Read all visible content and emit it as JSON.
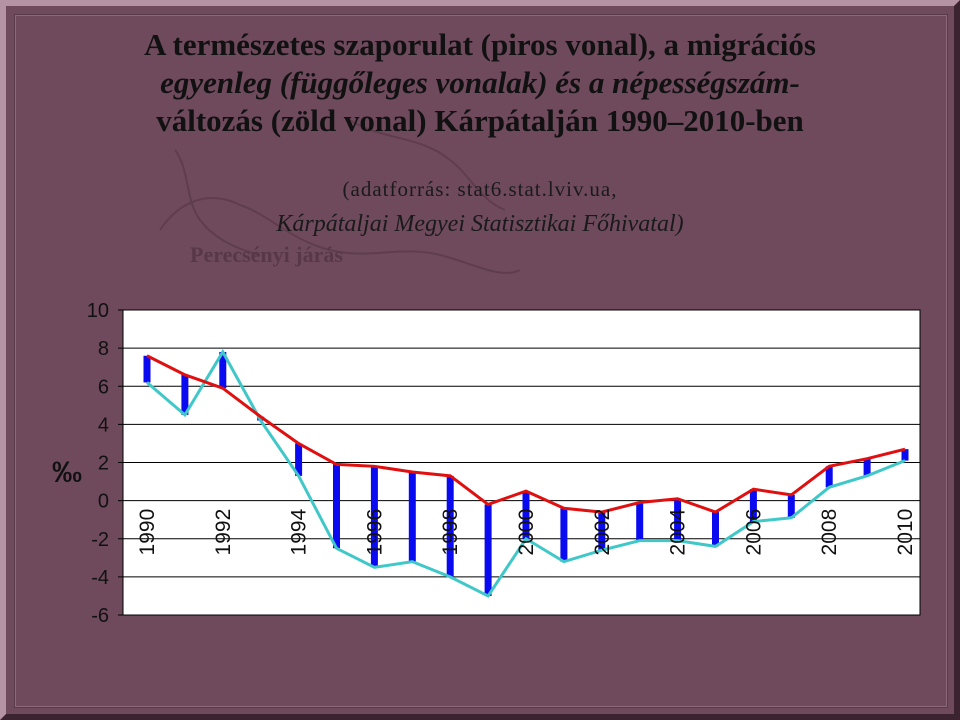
{
  "title": {
    "line1": "A természetes szaporulat (piros vonal), a migrációs",
    "line2": "egyenleg (függőleges vonalak) és a népességszám-",
    "line3": "változás (zöld vonal) Kárpátalján 1990–2010-ben"
  },
  "source": {
    "line1": "(adatforrás: stat6.stat.lviv.ua,",
    "line2": "Kárpátaljai Megyei Statisztikai Főhivatal)"
  },
  "background_label": "Perecsényi járás",
  "colors": {
    "background": "#6e4a5c",
    "plot_background": "#ffffff",
    "natural_increase": "#e01010",
    "population_change": "#40c8c8",
    "migration_bar": "#0a0af0"
  },
  "chart_data": {
    "type": "line",
    "ylabel": "‰",
    "ylim": [
      -6,
      10
    ],
    "yticks": [
      "10",
      "8",
      "6",
      "4",
      "2",
      "0",
      "-2",
      "-4",
      "-6"
    ],
    "x": [
      1990,
      1991,
      1992,
      1993,
      1994,
      1995,
      1996,
      1997,
      1998,
      1999,
      2000,
      2001,
      2002,
      2003,
      2004,
      2005,
      2006,
      2007,
      2008,
      2009,
      2010
    ],
    "xtick_labels": [
      "1990",
      "1992",
      "1994",
      "1996",
      "1998",
      "2000",
      "2002",
      "2004",
      "2006",
      "2008",
      "2010"
    ],
    "grid": true,
    "series": [
      {
        "name": "természetes szaporulat",
        "color": "#e01010",
        "values": [
          7.6,
          6.6,
          5.9,
          4.4,
          3.0,
          1.9,
          1.8,
          1.5,
          1.3,
          -0.2,
          0.5,
          -0.4,
          -0.6,
          -0.1,
          0.1,
          -0.6,
          0.6,
          0.3,
          1.8,
          2.2,
          2.7
        ]
      },
      {
        "name": "népességszám-változás",
        "color": "#40c8c8",
        "values": [
          6.2,
          4.5,
          7.8,
          4.2,
          1.3,
          -2.5,
          -3.5,
          -3.2,
          -4.0,
          -5.0,
          -2.0,
          -3.2,
          -2.6,
          -2.1,
          -2.1,
          -2.4,
          -1.1,
          -0.9,
          0.7,
          1.3,
          2.1
        ]
      }
    ]
  }
}
